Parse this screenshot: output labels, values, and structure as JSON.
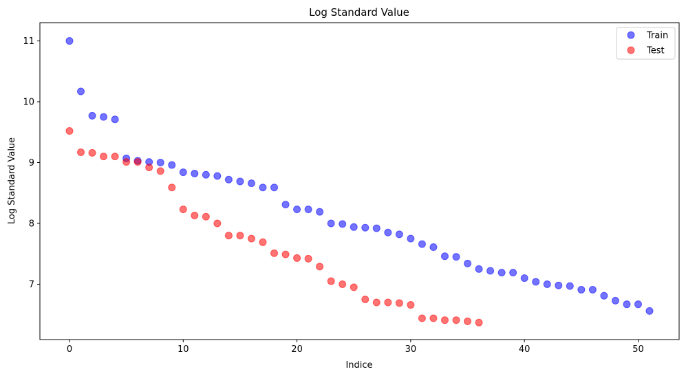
{
  "chart_data": {
    "type": "scatter",
    "title": "Log Standard Value",
    "xlabel": "Indice",
    "ylabel": "Log Standard Value",
    "xlim": [
      -2.6,
      53.6
    ],
    "ylim": [
      6.09,
      11.3
    ],
    "xticks": [
      0,
      10,
      20,
      30,
      40,
      50
    ],
    "yticks": [
      7,
      8,
      9,
      10,
      11
    ],
    "grid": false,
    "legend_position": "top-right",
    "series": [
      {
        "name": "Train",
        "color": "#0000ff",
        "x": [
          0,
          1,
          2,
          3,
          4,
          5,
          6,
          7,
          8,
          9,
          10,
          11,
          12,
          13,
          14,
          15,
          16,
          17,
          18,
          19,
          20,
          21,
          22,
          23,
          24,
          25,
          26,
          27,
          28,
          29,
          30,
          31,
          32,
          33,
          34,
          35,
          36,
          37,
          38,
          39,
          40,
          41,
          42,
          43,
          44,
          45,
          46,
          47,
          48,
          49,
          50,
          51
        ],
        "y": [
          11.0,
          10.17,
          9.77,
          9.75,
          9.71,
          9.07,
          9.03,
          9.01,
          9.0,
          8.96,
          8.84,
          8.82,
          8.8,
          8.78,
          8.72,
          8.69,
          8.66,
          8.59,
          8.59,
          8.31,
          8.23,
          8.23,
          8.19,
          8.0,
          7.99,
          7.94,
          7.93,
          7.92,
          7.85,
          7.82,
          7.75,
          7.66,
          7.61,
          7.46,
          7.45,
          7.34,
          7.25,
          7.22,
          7.19,
          7.19,
          7.1,
          7.04,
          7.0,
          6.98,
          6.97,
          6.91,
          6.91,
          6.81,
          6.73,
          6.67,
          6.67,
          6.56
        ]
      },
      {
        "name": "Test",
        "color": "#ff0000",
        "x": [
          0,
          1,
          2,
          3,
          4,
          5,
          6,
          7,
          8,
          9,
          10,
          11,
          12,
          13,
          14,
          15,
          16,
          17,
          18,
          19,
          20,
          21,
          22,
          23,
          24,
          25,
          26,
          27,
          28,
          29,
          30,
          31,
          32,
          33,
          34,
          35,
          36
        ],
        "y": [
          9.52,
          9.17,
          9.16,
          9.1,
          9.1,
          9.01,
          9.01,
          8.92,
          8.86,
          8.59,
          8.23,
          8.13,
          8.11,
          8.0,
          7.8,
          7.8,
          7.75,
          7.69,
          7.51,
          7.49,
          7.43,
          7.42,
          7.29,
          7.05,
          7.0,
          6.95,
          6.75,
          6.7,
          6.7,
          6.69,
          6.66,
          6.44,
          6.44,
          6.41,
          6.41,
          6.39,
          6.37
        ]
      }
    ]
  }
}
